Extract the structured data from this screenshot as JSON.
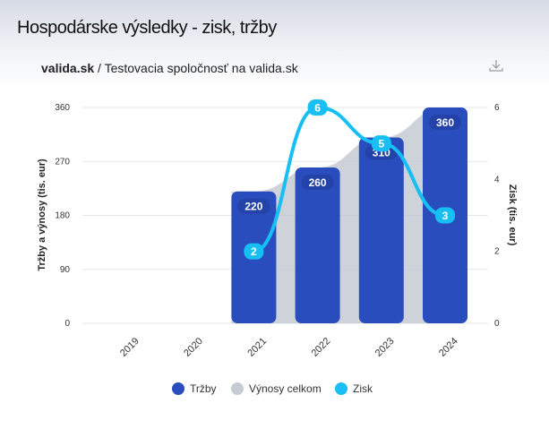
{
  "title": "Hospodárske výsledky - zisk, tržby",
  "subtitle": {
    "brand": "valida.sk",
    "company": "/ Testovacia spoločnosť na valida.sk"
  },
  "download_icon": "download-icon",
  "colors": {
    "trzby": "#2a4dbd",
    "vynosy": "#c6cbd3",
    "zisk": "#17bff2"
  },
  "chart_data": {
    "type": "bar",
    "title": "Hospodárske výsledky - zisk, tržby",
    "categories": [
      "2019",
      "2020",
      "2021",
      "2022",
      "2023",
      "2024"
    ],
    "series": [
      {
        "name": "Tržby",
        "type": "bar",
        "axis": "left",
        "values": [
          null,
          null,
          220,
          260,
          310,
          360
        ]
      },
      {
        "name": "Výnosy celkom",
        "type": "area",
        "axis": "left",
        "values": [
          null,
          null,
          220,
          260,
          310,
          360
        ]
      },
      {
        "name": "Zisk",
        "type": "line",
        "axis": "right",
        "values": [
          null,
          null,
          2,
          6,
          5,
          3
        ]
      }
    ],
    "ylabel": "Tržby a výnosy (tis. eur)",
    "ylim": [
      0,
      360
    ],
    "yticks": [
      "0",
      "90",
      "180",
      "270",
      "360"
    ],
    "y2label": "Zisk (tis. eur)",
    "y2lim": [
      0,
      6
    ],
    "y2ticks": [
      "0",
      "2",
      "4",
      "6"
    ],
    "grid": true,
    "legend": "bottom"
  }
}
